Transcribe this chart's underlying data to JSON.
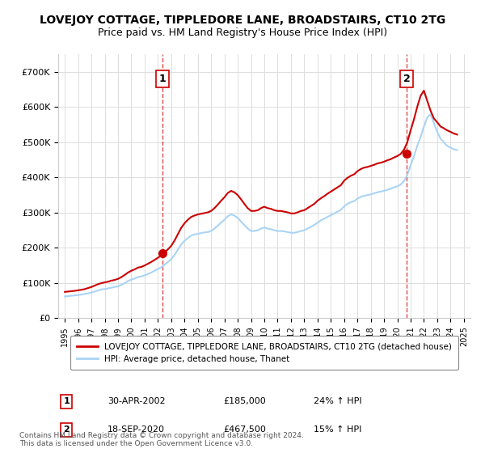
{
  "title": "LOVEJOY COTTAGE, TIPPLEDORE LANE, BROADSTAIRS, CT10 2TG",
  "subtitle": "Price paid vs. HM Land Registry's House Price Index (HPI)",
  "hpi_label": "HPI: Average price, detached house, Thanet",
  "property_label": "LOVEJOY COTTAGE, TIPPLEDORE LANE, BROADSTAIRS, CT10 2TG (detached house)",
  "hpi_color": "#aad4f5",
  "property_color": "#cc0000",
  "marker_color": "#cc0000",
  "vline_color": "#cc0000",
  "background_color": "#ffffff",
  "grid_color": "#dddddd",
  "ylim": [
    0,
    750000
  ],
  "yticks": [
    0,
    100000,
    200000,
    300000,
    400000,
    500000,
    600000,
    700000
  ],
  "ytick_labels": [
    "£0",
    "£100K",
    "£200K",
    "£300K",
    "£400K",
    "£500K",
    "£600K",
    "£700K"
  ],
  "sale1_date": 2002.33,
  "sale1_price": 185000,
  "sale1_label": "1",
  "sale1_date_str": "30-APR-2002",
  "sale1_price_str": "£185,000",
  "sale1_hpi_str": "24% ↑ HPI",
  "sale2_date": 2020.72,
  "sale2_price": 467500,
  "sale2_label": "2",
  "sale2_date_str": "18-SEP-2020",
  "sale2_price_str": "£467,500",
  "sale2_hpi_str": "15% ↑ HPI",
  "footer": "Contains HM Land Registry data © Crown copyright and database right 2024.\nThis data is licensed under the Open Government Licence v3.0.",
  "hpi_dates": [
    1995.0,
    1995.25,
    1995.5,
    1995.75,
    1996.0,
    1996.25,
    1996.5,
    1996.75,
    1997.0,
    1997.25,
    1997.5,
    1997.75,
    1998.0,
    1998.25,
    1998.5,
    1998.75,
    1999.0,
    1999.25,
    1999.5,
    1999.75,
    2000.0,
    2000.25,
    2000.5,
    2000.75,
    2001.0,
    2001.25,
    2001.5,
    2001.75,
    2002.0,
    2002.25,
    2002.5,
    2002.75,
    2003.0,
    2003.25,
    2003.5,
    2003.75,
    2004.0,
    2004.25,
    2004.5,
    2004.75,
    2005.0,
    2005.25,
    2005.5,
    2005.75,
    2006.0,
    2006.25,
    2006.5,
    2006.75,
    2007.0,
    2007.25,
    2007.5,
    2007.75,
    2008.0,
    2008.25,
    2008.5,
    2008.75,
    2009.0,
    2009.25,
    2009.5,
    2009.75,
    2010.0,
    2010.25,
    2010.5,
    2010.75,
    2011.0,
    2011.25,
    2011.5,
    2011.75,
    2012.0,
    2012.25,
    2012.5,
    2012.75,
    2013.0,
    2013.25,
    2013.5,
    2013.75,
    2014.0,
    2014.25,
    2014.5,
    2014.75,
    2015.0,
    2015.25,
    2015.5,
    2015.75,
    2016.0,
    2016.25,
    2016.5,
    2016.75,
    2017.0,
    2017.25,
    2017.5,
    2017.75,
    2018.0,
    2018.25,
    2018.5,
    2018.75,
    2019.0,
    2019.25,
    2019.5,
    2019.75,
    2020.0,
    2020.25,
    2020.5,
    2020.75,
    2021.0,
    2021.25,
    2021.5,
    2021.75,
    2022.0,
    2022.25,
    2022.5,
    2022.75,
    2023.0,
    2023.25,
    2023.5,
    2023.75,
    2024.0,
    2024.25,
    2024.5
  ],
  "hpi_values": [
    62000,
    63000,
    64000,
    65000,
    66000,
    67500,
    69000,
    71000,
    73000,
    76000,
    79000,
    82000,
    83000,
    85000,
    87000,
    89000,
    91000,
    95000,
    100000,
    106000,
    110000,
    113000,
    117000,
    119000,
    122000,
    126000,
    130000,
    135000,
    140000,
    145000,
    152000,
    160000,
    168000,
    180000,
    195000,
    210000,
    220000,
    228000,
    235000,
    238000,
    240000,
    242000,
    244000,
    245000,
    248000,
    255000,
    263000,
    272000,
    280000,
    290000,
    295000,
    292000,
    285000,
    275000,
    265000,
    255000,
    248000,
    248000,
    250000,
    255000,
    258000,
    255000,
    253000,
    250000,
    248000,
    248000,
    247000,
    245000,
    243000,
    243000,
    245000,
    248000,
    250000,
    255000,
    260000,
    265000,
    272000,
    278000,
    283000,
    288000,
    293000,
    298000,
    303000,
    308000,
    318000,
    325000,
    330000,
    333000,
    340000,
    345000,
    348000,
    350000,
    352000,
    355000,
    358000,
    360000,
    362000,
    365000,
    368000,
    372000,
    375000,
    380000,
    390000,
    407000,
    435000,
    460000,
    490000,
    515000,
    545000,
    570000,
    580000,
    555000,
    530000,
    510000,
    500000,
    490000,
    485000,
    480000,
    478000
  ],
  "property_dates": [
    1995.0,
    1995.25,
    1995.5,
    1995.75,
    1996.0,
    1996.25,
    1996.5,
    1996.75,
    1997.0,
    1997.25,
    1997.5,
    1997.75,
    1998.0,
    1998.25,
    1998.5,
    1998.75,
    1999.0,
    1999.25,
    1999.5,
    1999.75,
    2000.0,
    2000.25,
    2000.5,
    2000.75,
    2001.0,
    2001.25,
    2001.5,
    2001.75,
    2002.0,
    2002.25,
    2002.5,
    2002.75,
    2003.0,
    2003.25,
    2003.5,
    2003.75,
    2004.0,
    2004.25,
    2004.5,
    2004.75,
    2005.0,
    2005.25,
    2005.5,
    2005.75,
    2006.0,
    2006.25,
    2006.5,
    2006.75,
    2007.0,
    2007.25,
    2007.5,
    2007.75,
    2008.0,
    2008.25,
    2008.5,
    2008.75,
    2009.0,
    2009.25,
    2009.5,
    2009.75,
    2010.0,
    2010.25,
    2010.5,
    2010.75,
    2011.0,
    2011.25,
    2011.5,
    2011.75,
    2012.0,
    2012.25,
    2012.5,
    2012.75,
    2013.0,
    2013.25,
    2013.5,
    2013.75,
    2014.0,
    2014.25,
    2014.5,
    2014.75,
    2015.0,
    2015.25,
    2015.5,
    2015.75,
    2016.0,
    2016.25,
    2016.5,
    2016.75,
    2017.0,
    2017.25,
    2017.5,
    2017.75,
    2018.0,
    2018.25,
    2018.5,
    2018.75,
    2019.0,
    2019.25,
    2019.5,
    2019.75,
    2020.0,
    2020.25,
    2020.5,
    2020.75,
    2021.0,
    2021.25,
    2021.5,
    2021.75,
    2022.0,
    2022.25,
    2022.5,
    2022.75,
    2023.0,
    2023.25,
    2023.5,
    2023.75,
    2024.0,
    2024.25,
    2024.5
  ],
  "property_values": [
    75000,
    76000,
    77000,
    78000,
    79500,
    81000,
    83000,
    86000,
    89000,
    93000,
    97000,
    100000,
    102000,
    104000,
    107000,
    109000,
    112000,
    117000,
    123000,
    130000,
    135000,
    139000,
    144000,
    146000,
    150000,
    155000,
    160000,
    166000,
    172000,
    178000,
    187000,
    196000,
    206000,
    221000,
    239000,
    257000,
    270000,
    280000,
    288000,
    292000,
    295000,
    297000,
    299000,
    301000,
    305000,
    313000,
    323000,
    334000,
    344000,
    356000,
    362000,
    358000,
    350000,
    338000,
    325000,
    313000,
    305000,
    305000,
    307000,
    313000,
    317000,
    313000,
    311000,
    307000,
    305000,
    305000,
    303000,
    301000,
    298000,
    298000,
    301000,
    305000,
    307000,
    313000,
    319000,
    325000,
    334000,
    341000,
    347000,
    354000,
    360000,
    366000,
    372000,
    378000,
    391000,
    399000,
    405000,
    409000,
    418000,
    424000,
    428000,
    430000,
    433000,
    436000,
    440000,
    442000,
    445000,
    449000,
    452000,
    457000,
    461000,
    467000,
    479000,
    500000,
    534000,
    565000,
    601000,
    632000,
    647000,
    618000,
    590000,
    568000,
    557000,
    545000,
    540000,
    534000,
    530000,
    525000,
    522000
  ]
}
